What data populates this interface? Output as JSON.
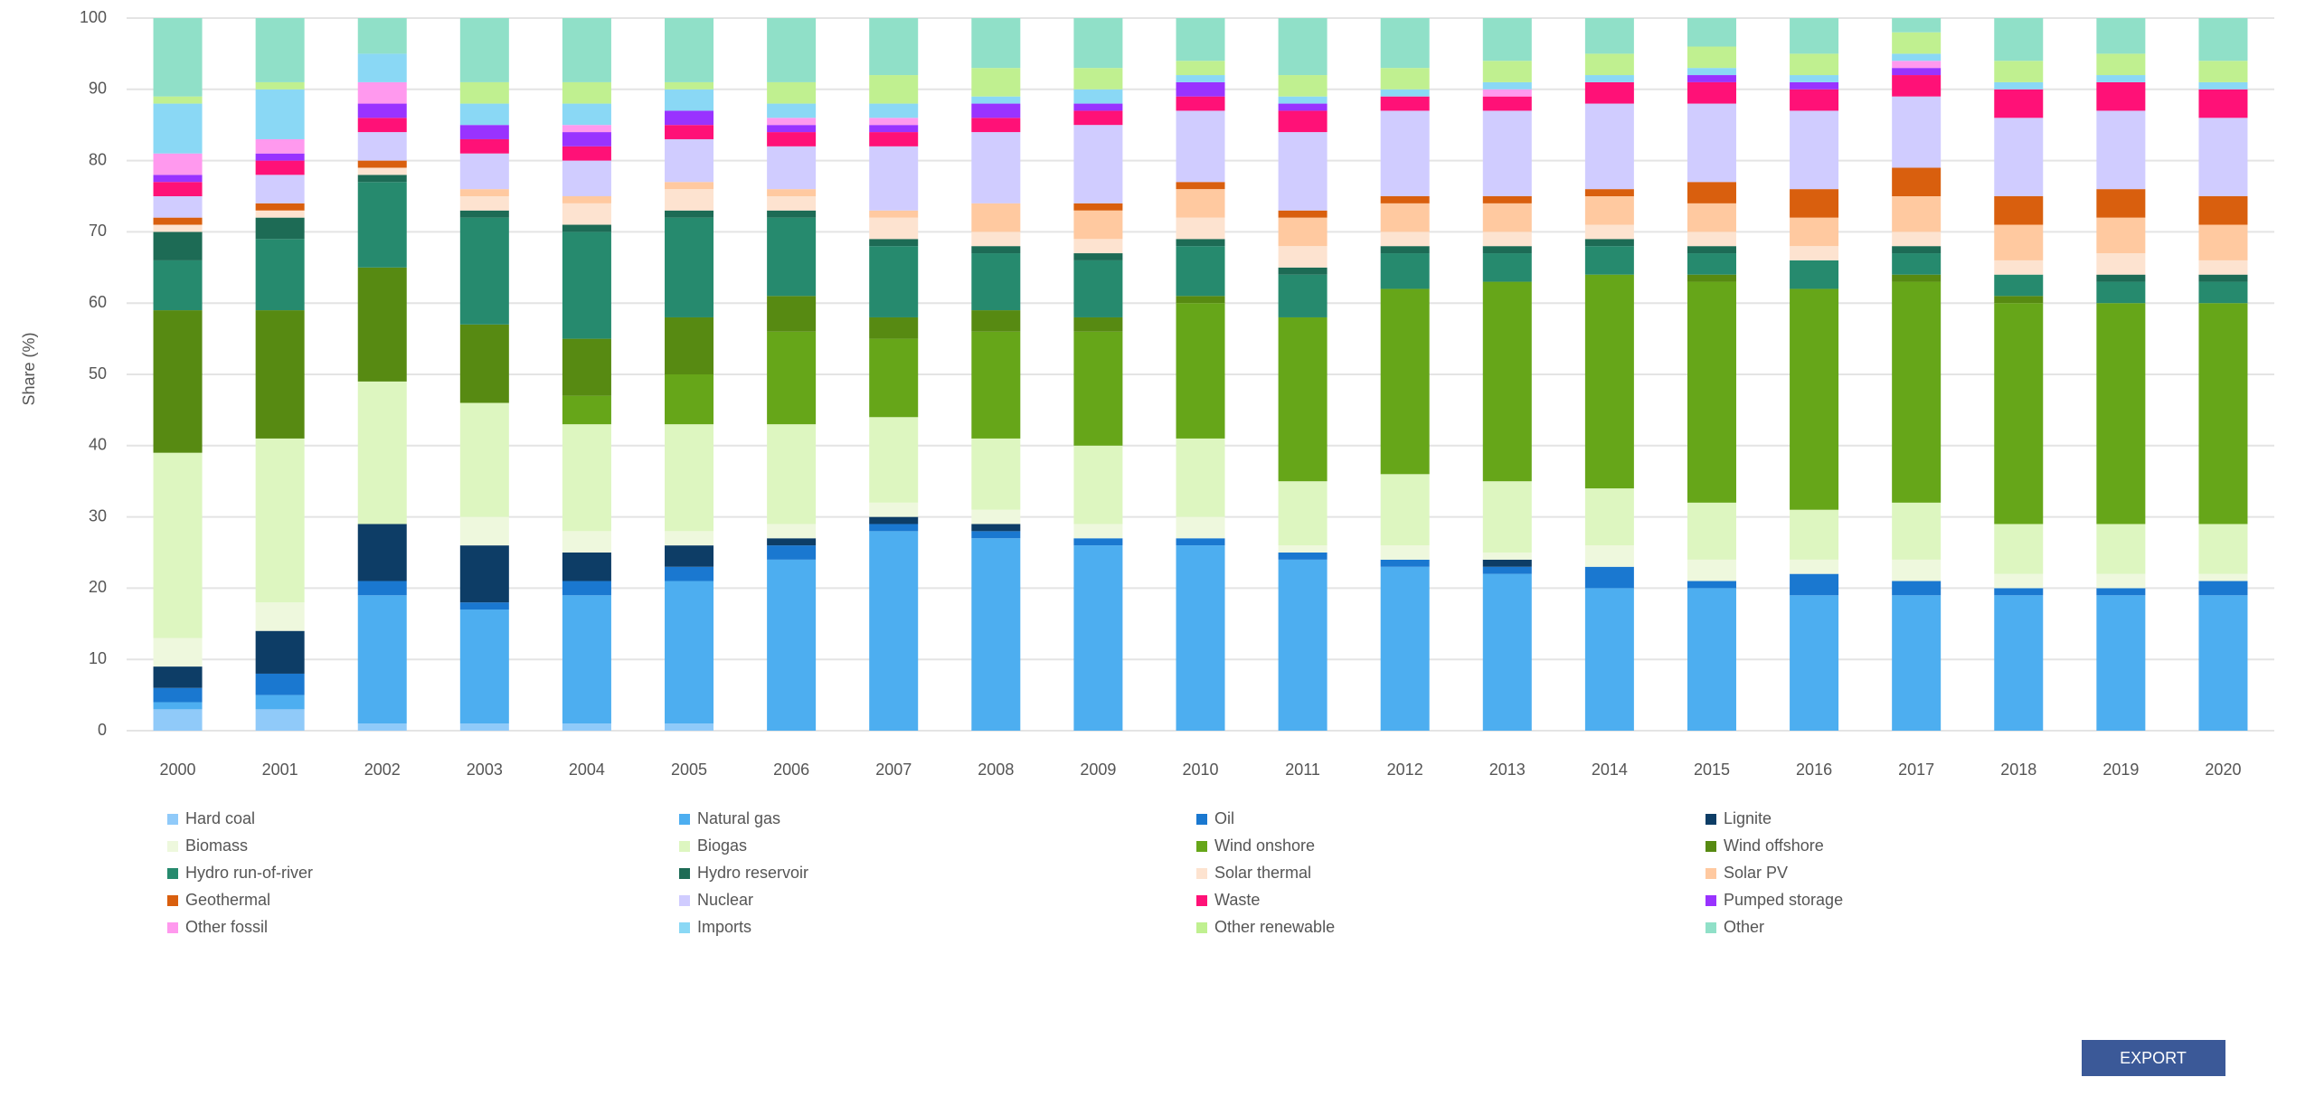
{
  "chart_data": {
    "type": "stacked_bar",
    "y_label": "Share (%)",
    "categories": [
      "2000",
      "2001",
      "2002",
      "2003",
      "2004",
      "2005",
      "2006",
      "2007",
      "2008",
      "2009",
      "2010",
      "2011",
      "2012",
      "2013",
      "2014",
      "2015",
      "2016",
      "2017",
      "2018",
      "2019",
      "2020"
    ],
    "ylim": [
      0,
      100
    ],
    "yticks": [
      0,
      10,
      20,
      30,
      40,
      50,
      60,
      70,
      80,
      90,
      100
    ],
    "grid": true,
    "series": [
      {
        "name": "Hard coal",
        "color": "#90caf9",
        "values": [
          3,
          3,
          1,
          1,
          1,
          1,
          0,
          0,
          0,
          0,
          0,
          0,
          0,
          0,
          0,
          0,
          0,
          0,
          0,
          0,
          0
        ]
      },
      {
        "name": "Natural gas",
        "color": "#4daef0",
        "values": [
          1,
          2,
          18,
          16,
          18,
          20,
          24,
          28,
          27,
          26,
          26,
          24,
          23,
          22,
          20,
          20,
          19,
          19,
          19,
          19,
          19
        ]
      },
      {
        "name": "Oil",
        "color": "#1a78d0",
        "values": [
          2,
          3,
          2,
          1,
          2,
          2,
          2,
          1,
          1,
          1,
          1,
          1,
          1,
          1,
          3,
          1,
          3,
          2,
          1,
          1,
          2
        ]
      },
      {
        "name": "Lignite",
        "color": "#0d3d66",
        "values": [
          3,
          6,
          8,
          8,
          4,
          3,
          1,
          1,
          1,
          0,
          0,
          0,
          0,
          1,
          0,
          0,
          0,
          0,
          0,
          0,
          0
        ]
      },
      {
        "name": "Biomass",
        "color": "#eef8dd",
        "values": [
          4,
          4,
          0,
          4,
          3,
          2,
          2,
          2,
          2,
          2,
          3,
          1,
          2,
          1,
          3,
          3,
          2,
          3,
          2,
          2,
          1
        ]
      },
      {
        "name": "Biogas",
        "color": "#ddf6c0",
        "values": [
          26,
          23,
          20,
          16,
          15,
          15,
          14,
          12,
          10,
          11,
          11,
          9,
          10,
          10,
          8,
          8,
          7,
          8,
          7,
          7,
          7
        ]
      },
      {
        "name": "Wind onshore",
        "color": "#66a619",
        "values": [
          0,
          0,
          0,
          0,
          4,
          7,
          13,
          11,
          15,
          16,
          19,
          23,
          26,
          28,
          30,
          31,
          31,
          31,
          31,
          31,
          31
        ]
      },
      {
        "name": "Wind offshore",
        "color": "#578a12",
        "values": [
          20,
          18,
          16,
          11,
          8,
          8,
          5,
          3,
          3,
          2,
          1,
          0,
          0,
          0,
          0,
          1,
          0,
          1,
          1,
          0,
          0
        ]
      },
      {
        "name": "Hydro run-of-river",
        "color": "#268a6e",
        "values": [
          7,
          10,
          12,
          15,
          15,
          14,
          11,
          10,
          8,
          8,
          7,
          6,
          5,
          4,
          4,
          3,
          4,
          3,
          3,
          3,
          3
        ]
      },
      {
        "name": "Hydro reservoir",
        "color": "#1d6b55",
        "values": [
          4,
          3,
          1,
          1,
          1,
          1,
          1,
          1,
          1,
          1,
          1,
          1,
          1,
          1,
          1,
          1,
          0,
          1,
          0,
          1,
          1
        ]
      },
      {
        "name": "Solar thermal",
        "color": "#fde3d0",
        "values": [
          1,
          1,
          1,
          2,
          3,
          3,
          2,
          3,
          2,
          2,
          3,
          3,
          2,
          2,
          2,
          2,
          2,
          2,
          2,
          3,
          2
        ]
      },
      {
        "name": "Solar PV",
        "color": "#ffc9a0",
        "values": [
          0,
          0,
          0,
          1,
          1,
          1,
          1,
          1,
          4,
          4,
          4,
          4,
          4,
          4,
          4,
          4,
          4,
          5,
          5,
          5,
          5
        ]
      },
      {
        "name": "Geothermal",
        "color": "#d95f0e",
        "values": [
          1,
          1,
          1,
          0,
          0,
          0,
          0,
          0,
          0,
          1,
          1,
          1,
          1,
          1,
          1,
          3,
          4,
          4,
          4,
          4,
          4
        ]
      },
      {
        "name": "Nuclear",
        "color": "#d0ccff",
        "values": [
          3,
          4,
          4,
          5,
          5,
          6,
          6,
          9,
          10,
          11,
          10,
          11,
          12,
          12,
          12,
          11,
          11,
          10,
          11,
          11,
          11
        ]
      },
      {
        "name": "Waste",
        "color": "#ff1177",
        "values": [
          2,
          2,
          2,
          2,
          2,
          2,
          2,
          2,
          2,
          2,
          2,
          3,
          2,
          2,
          3,
          3,
          3,
          3,
          4,
          4,
          4
        ]
      },
      {
        "name": "Pumped storage",
        "color": "#9933ff",
        "values": [
          1,
          1,
          2,
          2,
          2,
          2,
          1,
          1,
          2,
          1,
          2,
          1,
          0,
          0,
          0,
          1,
          1,
          1,
          0,
          0,
          0
        ]
      },
      {
        "name": "Other fossil",
        "color": "#ff99ee",
        "values": [
          3,
          2,
          3,
          0,
          1,
          0,
          1,
          1,
          0,
          0,
          0,
          0,
          0,
          1,
          0,
          0,
          0,
          1,
          0,
          0,
          0
        ]
      },
      {
        "name": "Imports",
        "color": "#8ad8f5",
        "values": [
          7,
          7,
          4,
          3,
          3,
          3,
          2,
          2,
          1,
          2,
          1,
          1,
          1,
          1,
          1,
          1,
          1,
          1,
          1,
          1,
          1
        ]
      },
      {
        "name": "Other renewable",
        "color": "#c0f090",
        "values": [
          1,
          1,
          0,
          3,
          3,
          1,
          3,
          4,
          4,
          3,
          2,
          3,
          3,
          3,
          3,
          3,
          3,
          3,
          3,
          3,
          3
        ]
      },
      {
        "name": "Other",
        "color": "#90e0c8",
        "values": [
          11,
          9,
          5,
          9,
          9,
          9,
          9,
          8,
          7,
          7,
          6,
          8,
          7,
          6,
          5,
          4,
          5,
          2,
          6,
          5,
          6
        ]
      }
    ]
  },
  "button": "EXPORT"
}
